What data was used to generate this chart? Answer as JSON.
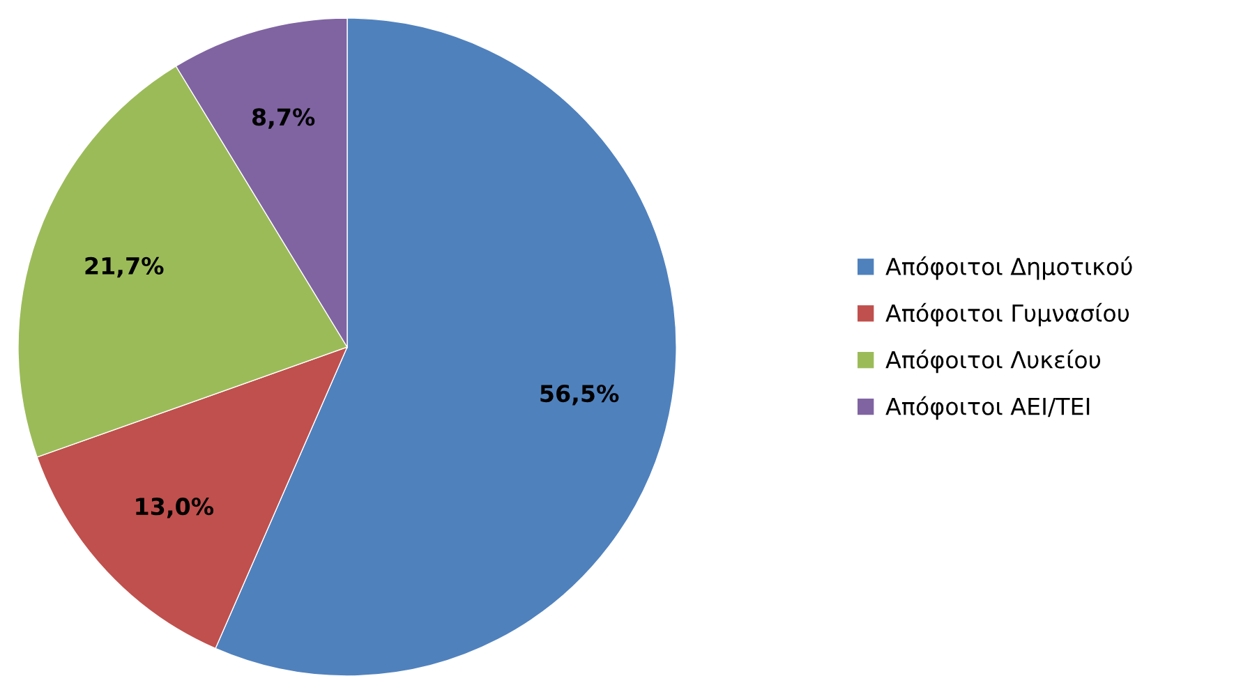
{
  "chart_data": {
    "type": "pie",
    "categories": [
      "Απόφοιτοι Δημοτικού",
      "Απόφοιτοι Γυμνασίου",
      "Απόφοιτοι Λυκείου",
      "Απόφοιτοι ΑΕΙ/ΤΕΙ"
    ],
    "values": [
      56.5,
      13.0,
      21.7,
      8.7
    ],
    "colors": [
      "#4f81bd",
      "#c0504d",
      "#9bbb59",
      "#8064a2"
    ],
    "value_labels": [
      "56,5%",
      "13,0%",
      "21,7%",
      "8,7%"
    ],
    "legend": "right"
  }
}
